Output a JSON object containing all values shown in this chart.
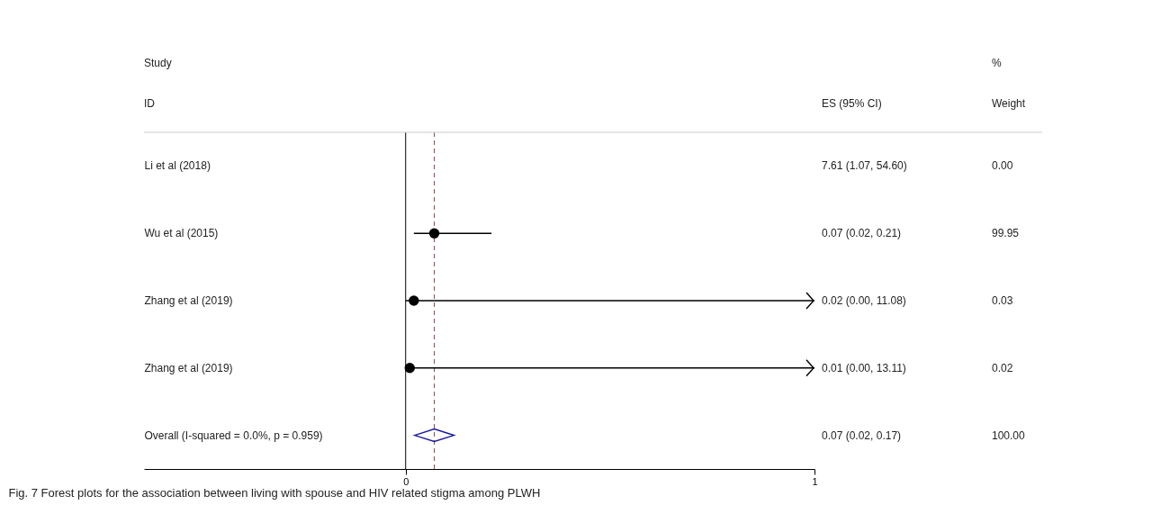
{
  "chart_data": {
    "type": "scatter",
    "title": "Fig. 7 Forest plots for the association between living with spouse and HIV related stigma among PLWH",
    "ylabel": "Study ID",
    "categories": [
      "Li et al (2018)",
      "Wu et al (2015)",
      "Zhang et al (2019)",
      "Zhang et al (2019)",
      "Overall (I-squared = 0.0%, p = 0.959)"
    ],
    "series": [
      {
        "type": "scatter",
        "marker": "circle",
        "color": "#000000",
        "values": [
          null,
          0.07,
          0.02,
          0.01,
          null
        ],
        "errors": [
          null,
          [
            0.02,
            0.21
          ],
          [
            0.0,
            11.08
          ],
          [
            0.0,
            13.11
          ],
          null
        ]
      },
      {
        "type": "scatter",
        "marker": "diamond",
        "color": "#1a1a9a",
        "values": [
          null,
          null,
          null,
          null,
          0.07
        ]
      }
    ],
    "value_labels": [
      "7.61 (1.07, 54.60)",
      "0.07 (0.02, 0.21)",
      "0.02 (0.00, 11.08)",
      "0.01 (0.00, 13.11)",
      "0.07 (0.02, 0.17)"
    ],
    "annotations": [
      "ES (95% CI)",
      "% Weight",
      "0.00",
      "99.95",
      "0.03",
      "0.02",
      "100.00"
    ],
    "ref_lines": [
      {
        "axis": "x",
        "value": 0,
        "color": "#000000",
        "line_style": "solid"
      },
      {
        "axis": "x",
        "value": 0.07,
        "color": "#8b4a4a",
        "line_style": "dashed"
      }
    ],
    "orientation": "horizontal",
    "xlim": [
      -0.64,
      1
    ],
    "xticks": [
      0,
      1
    ],
    "grid": false
  }
}
